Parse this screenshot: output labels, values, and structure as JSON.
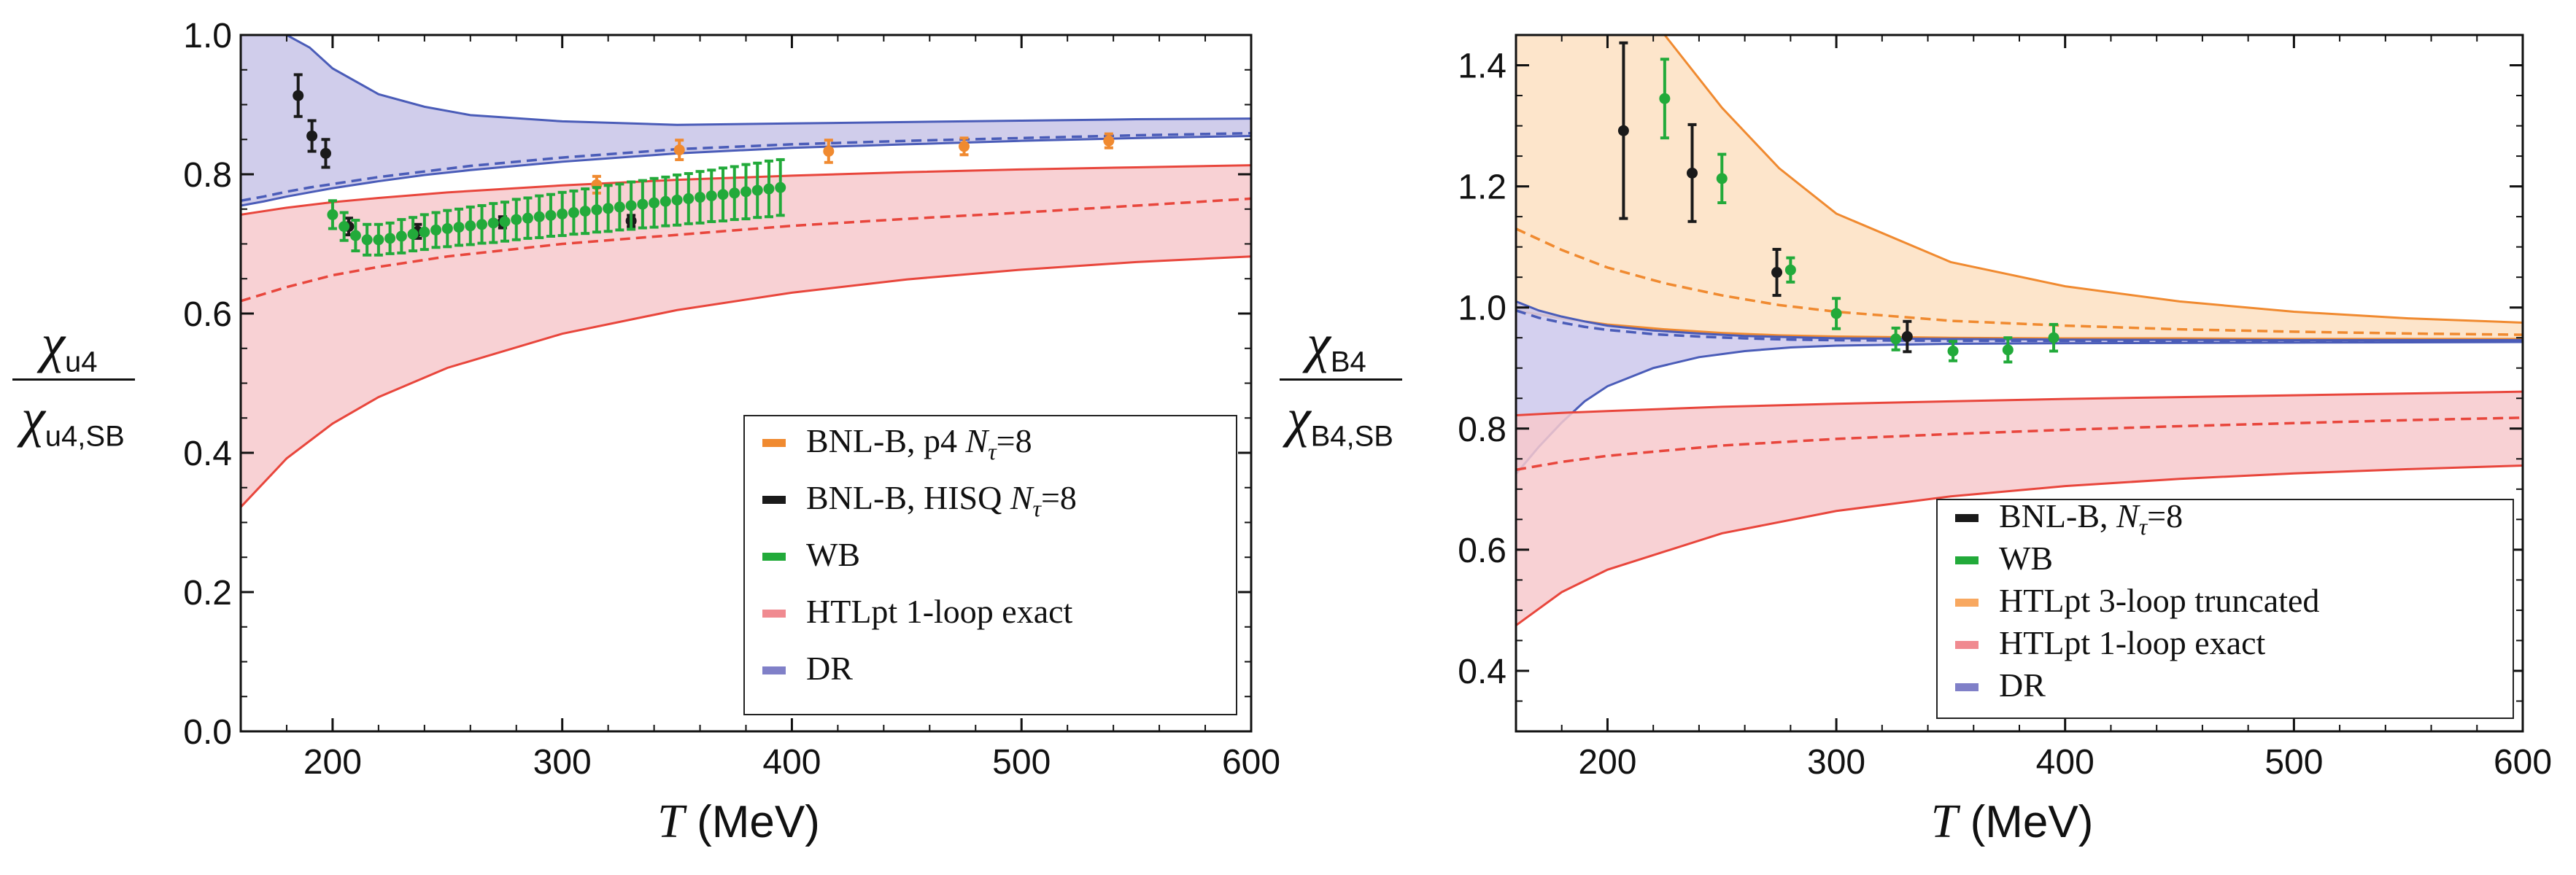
{
  "chart_data": [
    {
      "type": "line",
      "xlabel": "T",
      "xunit": "(MeV)",
      "ylabel_num": "χ",
      "ylabel_num_sub": "u4",
      "ylabel_den": "χ",
      "ylabel_den_sub": "u4,SB",
      "xlim": [
        160,
        600
      ],
      "ylim": [
        0.0,
        1.0
      ],
      "xticks": [
        200,
        300,
        400,
        500,
        600
      ],
      "yticks": [
        0.0,
        0.2,
        0.4,
        0.6,
        0.8,
        1.0
      ],
      "ytick_labels": [
        "0.0",
        "0.2",
        "0.4",
        "0.6",
        "0.8",
        "1.0"
      ],
      "legend_position": "bottom-right",
      "legend": [
        {
          "label": "BNL-B, p4 ",
          "label_italic": "N",
          "label_sub": "τ",
          "label_tail": "=8",
          "color": "#f08a30"
        },
        {
          "label": "BNL-B, HISQ ",
          "label_italic": "N",
          "label_sub": "τ",
          "label_tail": "=8",
          "color": "#1a1a1a"
        },
        {
          "label": "WB",
          "label_italic": "",
          "label_sub": "",
          "label_tail": "",
          "color": "#22aa3a"
        },
        {
          "label": "HTLpt 1-loop exact",
          "label_italic": "",
          "label_sub": "",
          "label_tail": "",
          "color": "#f08a90"
        },
        {
          "label": "DR",
          "label_italic": "",
          "label_sub": "",
          "label_tail": "",
          "color": "#8080c8"
        }
      ],
      "bands": [
        {
          "name": "DR",
          "fill": "#c8c4e8",
          "line": "#4a5cb8",
          "x": [
            160,
            170,
            180,
            190,
            200,
            220,
            240,
            260,
            300,
            350,
            400,
            450,
            500,
            550,
            600
          ],
          "upper": [
            1.0,
            1.0,
            1.0,
            0.982,
            0.952,
            0.915,
            0.897,
            0.885,
            0.876,
            0.871,
            0.873,
            0.875,
            0.877,
            0.879,
            0.88
          ],
          "lower": [
            0.755,
            0.761,
            0.768,
            0.774,
            0.78,
            0.79,
            0.799,
            0.806,
            0.818,
            0.83,
            0.838,
            0.843,
            0.848,
            0.852,
            0.855
          ],
          "central": [
            0.762,
            0.768,
            0.775,
            0.781,
            0.786,
            0.796,
            0.804,
            0.812,
            0.824,
            0.836,
            0.843,
            0.848,
            0.852,
            0.856,
            0.859
          ]
        },
        {
          "name": "HTLpt 1-loop exact",
          "fill": "#f7c9cc",
          "line": "#e8463c",
          "x": [
            160,
            180,
            200,
            220,
            250,
            300,
            350,
            400,
            450,
            500,
            550,
            600
          ],
          "upper": [
            0.742,
            0.752,
            0.76,
            0.766,
            0.774,
            0.784,
            0.792,
            0.798,
            0.803,
            0.807,
            0.81,
            0.813
          ],
          "lower": [
            0.322,
            0.392,
            0.442,
            0.48,
            0.522,
            0.571,
            0.605,
            0.63,
            0.649,
            0.663,
            0.674,
            0.682
          ],
          "central": [
            0.618,
            0.638,
            0.655,
            0.667,
            0.682,
            0.7,
            0.713,
            0.726,
            0.736,
            0.745,
            0.755,
            0.765
          ]
        }
      ],
      "series": [
        {
          "name": "BNL-B, p4 Nτ=8",
          "color": "#f08a30",
          "points": [
            {
              "x": 315,
              "y": 0.785,
              "err": 0.012
            },
            {
              "x": 351,
              "y": 0.835,
              "err": 0.014
            },
            {
              "x": 416,
              "y": 0.833,
              "err": 0.016
            },
            {
              "x": 475,
              "y": 0.84,
              "err": 0.012
            },
            {
              "x": 538,
              "y": 0.848,
              "err": 0.01
            }
          ]
        },
        {
          "name": "BNL-B, HISQ Nτ=8",
          "color": "#1a1a1a",
          "points": [
            {
              "x": 185,
              "y": 0.913,
              "err": 0.03
            },
            {
              "x": 191,
              "y": 0.855,
              "err": 0.022
            },
            {
              "x": 197,
              "y": 0.83,
              "err": 0.02
            },
            {
              "x": 207,
              "y": 0.725,
              "err": 0.012
            },
            {
              "x": 237,
              "y": 0.718,
              "err": 0.01
            },
            {
              "x": 274,
              "y": 0.731,
              "err": 0.008
            },
            {
              "x": 330,
              "y": 0.733,
              "err": 0.008
            }
          ]
        },
        {
          "name": "WB",
          "color": "#22aa3a",
          "points": [
            {
              "x": 200,
              "y": 0.742,
              "err": 0.02
            },
            {
              "x": 205,
              "y": 0.725,
              "err": 0.02
            },
            {
              "x": 210,
              "y": 0.712,
              "err": 0.022
            },
            {
              "x": 215,
              "y": 0.706,
              "err": 0.022
            },
            {
              "x": 220,
              "y": 0.706,
              "err": 0.022
            },
            {
              "x": 225,
              "y": 0.708,
              "err": 0.022
            },
            {
              "x": 230,
              "y": 0.711,
              "err": 0.024
            },
            {
              "x": 235,
              "y": 0.714,
              "err": 0.024
            },
            {
              "x": 240,
              "y": 0.717,
              "err": 0.025
            },
            {
              "x": 245,
              "y": 0.72,
              "err": 0.025
            },
            {
              "x": 250,
              "y": 0.722,
              "err": 0.026
            },
            {
              "x": 255,
              "y": 0.724,
              "err": 0.026
            },
            {
              "x": 260,
              "y": 0.726,
              "err": 0.027
            },
            {
              "x": 265,
              "y": 0.728,
              "err": 0.027
            },
            {
              "x": 270,
              "y": 0.73,
              "err": 0.028
            },
            {
              "x": 275,
              "y": 0.732,
              "err": 0.028
            },
            {
              "x": 280,
              "y": 0.735,
              "err": 0.029
            },
            {
              "x": 285,
              "y": 0.737,
              "err": 0.029
            },
            {
              "x": 290,
              "y": 0.739,
              "err": 0.03
            },
            {
              "x": 295,
              "y": 0.741,
              "err": 0.03
            },
            {
              "x": 300,
              "y": 0.743,
              "err": 0.031
            },
            {
              "x": 305,
              "y": 0.745,
              "err": 0.031
            },
            {
              "x": 310,
              "y": 0.747,
              "err": 0.032
            },
            {
              "x": 315,
              "y": 0.749,
              "err": 0.032
            },
            {
              "x": 320,
              "y": 0.751,
              "err": 0.033
            },
            {
              "x": 325,
              "y": 0.753,
              "err": 0.033
            },
            {
              "x": 330,
              "y": 0.755,
              "err": 0.034
            },
            {
              "x": 335,
              "y": 0.757,
              "err": 0.034
            },
            {
              "x": 340,
              "y": 0.759,
              "err": 0.035
            },
            {
              "x": 345,
              "y": 0.761,
              "err": 0.035
            },
            {
              "x": 350,
              "y": 0.763,
              "err": 0.036
            },
            {
              "x": 355,
              "y": 0.765,
              "err": 0.036
            },
            {
              "x": 360,
              "y": 0.767,
              "err": 0.037
            },
            {
              "x": 365,
              "y": 0.769,
              "err": 0.037
            },
            {
              "x": 370,
              "y": 0.771,
              "err": 0.038
            },
            {
              "x": 375,
              "y": 0.773,
              "err": 0.038
            },
            {
              "x": 380,
              "y": 0.775,
              "err": 0.039
            },
            {
              "x": 385,
              "y": 0.777,
              "err": 0.039
            },
            {
              "x": 390,
              "y": 0.779,
              "err": 0.04
            },
            {
              "x": 395,
              "y": 0.781,
              "err": 0.04
            }
          ]
        }
      ]
    },
    {
      "type": "line",
      "xlabel": "T",
      "xunit": "(MeV)",
      "ylabel_num": "χ",
      "ylabel_num_sub": "B4",
      "ylabel_den": "χ",
      "ylabel_den_sub": "B4,SB",
      "xlim": [
        160,
        600
      ],
      "ylim": [
        0.3,
        1.45
      ],
      "xticks": [
        200,
        300,
        400,
        500,
        600
      ],
      "yticks": [
        0.4,
        0.6,
        0.8,
        1.0,
        1.2,
        1.4
      ],
      "ytick_labels": [
        "0.4",
        "0.6",
        "0.8",
        "1.0",
        "1.2",
        "1.4"
      ],
      "legend_position": "bottom-right",
      "legend": [
        {
          "label": "BNL-B, ",
          "label_italic": "N",
          "label_sub": "τ",
          "label_tail": "=8",
          "color": "#1a1a1a"
        },
        {
          "label": "WB",
          "label_italic": "",
          "label_sub": "",
          "label_tail": "",
          "color": "#22aa3a"
        },
        {
          "label": "HTLpt 3-loop truncated",
          "label_italic": "",
          "label_sub": "",
          "label_tail": "",
          "color": "#f8a860"
        },
        {
          "label": "HTLpt 1-loop exact",
          "label_italic": "",
          "label_sub": "",
          "label_tail": "",
          "color": "#f08a90"
        },
        {
          "label": "DR",
          "label_italic": "",
          "label_sub": "",
          "label_tail": "",
          "color": "#8080c8"
        }
      ],
      "bands": [
        {
          "name": "HTLpt 3-loop truncated",
          "fill": "#fde0c2",
          "line": "#f08a30",
          "x": [
            160,
            180,
            200,
            225,
            250,
            275,
            300,
            350,
            400,
            450,
            500,
            550,
            600
          ],
          "upper": [
            1.45,
            1.45,
            1.45,
            1.45,
            1.33,
            1.23,
            1.155,
            1.075,
            1.035,
            1.01,
            0.993,
            0.982,
            0.975
          ],
          "lower": [
            0.995,
            0.982,
            0.972,
            0.964,
            0.958,
            0.954,
            0.952,
            0.95,
            0.949,
            0.949,
            0.948,
            0.948,
            0.948
          ],
          "central": [
            1.13,
            1.095,
            1.066,
            1.04,
            1.02,
            1.004,
            0.993,
            0.978,
            0.97,
            0.964,
            0.96,
            0.957,
            0.955
          ]
        },
        {
          "name": "DR",
          "fill": "#cdc8ec",
          "line": "#4a5cb8",
          "x": [
            160,
            170,
            180,
            190,
            200,
            220,
            240,
            260,
            280,
            300,
            350,
            400,
            500,
            600
          ],
          "upper": [
            1.01,
            0.995,
            0.985,
            0.977,
            0.97,
            0.962,
            0.957,
            0.953,
            0.951,
            0.949,
            0.948,
            0.947,
            0.946,
            0.946
          ],
          "lower": [
            0.725,
            0.77,
            0.81,
            0.845,
            0.87,
            0.9,
            0.918,
            0.928,
            0.934,
            0.937,
            0.94,
            0.941,
            0.942,
            0.943
          ],
          "central": [
            0.995,
            0.983,
            0.975,
            0.968,
            0.963,
            0.956,
            0.952,
            0.949,
            0.947,
            0.946,
            0.945,
            0.945,
            0.945,
            0.945
          ]
        },
        {
          "name": "HTLpt 1-loop exact",
          "fill": "#f7c9cc",
          "line": "#e8463c",
          "x": [
            160,
            180,
            200,
            250,
            300,
            350,
            400,
            450,
            500,
            550,
            600
          ],
          "upper": [
            0.822,
            0.826,
            0.829,
            0.836,
            0.841,
            0.845,
            0.849,
            0.852,
            0.855,
            0.858,
            0.861
          ],
          "lower": [
            0.475,
            0.53,
            0.567,
            0.627,
            0.664,
            0.688,
            0.705,
            0.717,
            0.726,
            0.733,
            0.739
          ],
          "central": [
            0.732,
            0.745,
            0.755,
            0.772,
            0.783,
            0.791,
            0.798,
            0.804,
            0.809,
            0.814,
            0.818
          ]
        }
      ],
      "series": [
        {
          "name": "BNL-B, Nτ=8",
          "color": "#1a1a1a",
          "points": [
            {
              "x": 207,
              "y": 1.292,
              "err": 0.145
            },
            {
              "x": 237,
              "y": 1.222,
              "err": 0.08
            },
            {
              "x": 274,
              "y": 1.058,
              "err": 0.038
            },
            {
              "x": 331,
              "y": 0.952,
              "err": 0.025
            }
          ]
        },
        {
          "name": "WB",
          "color": "#22aa3a",
          "points": [
            {
              "x": 225,
              "y": 1.345,
              "err": 0.065
            },
            {
              "x": 250,
              "y": 1.213,
              "err": 0.04
            },
            {
              "x": 280,
              "y": 1.062,
              "err": 0.02
            },
            {
              "x": 300,
              "y": 0.99,
              "err": 0.025
            },
            {
              "x": 326,
              "y": 0.948,
              "err": 0.018
            },
            {
              "x": 351,
              "y": 0.928,
              "err": 0.016
            },
            {
              "x": 375,
              "y": 0.93,
              "err": 0.02
            },
            {
              "x": 395,
              "y": 0.95,
              "err": 0.022
            }
          ]
        }
      ]
    }
  ]
}
